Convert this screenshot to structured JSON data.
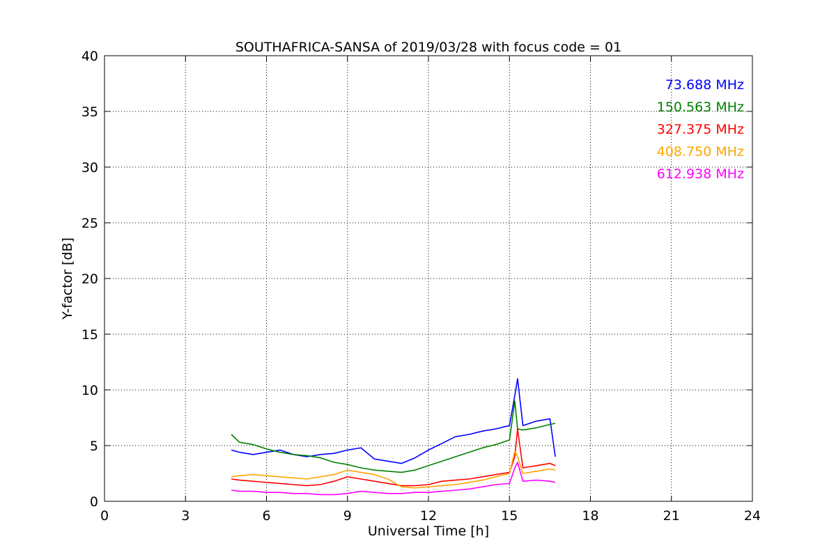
{
  "chart_data": {
    "type": "line",
    "title": "SOUTHAFRICA-SANSA of 2019/03/28 with focus code = 01",
    "xlabel": "Universal Time [h]",
    "ylabel": "Y-factor [dB]",
    "xlim": [
      0,
      24
    ],
    "ylim": [
      0,
      40
    ],
    "xticks": [
      "0",
      "3",
      "6",
      "9",
      "12",
      "15",
      "18",
      "21",
      "24"
    ],
    "yticks": [
      "0",
      "5",
      "10",
      "15",
      "20",
      "25",
      "30",
      "35",
      "40"
    ],
    "grid": true,
    "legend_position": "top-right",
    "series": [
      {
        "name": "73.688 MHz",
        "color": "#0000ff",
        "x": [
          4.7,
          5.0,
          5.5,
          6.0,
          6.5,
          7.0,
          7.5,
          8.0,
          8.5,
          9.0,
          9.5,
          10.0,
          10.5,
          11.0,
          11.5,
          12.0,
          12.5,
          13.0,
          13.5,
          14.0,
          14.5,
          15.0,
          15.2,
          15.3,
          15.5,
          16.0,
          16.5,
          16.7
        ],
        "y": [
          4.6,
          4.4,
          4.2,
          4.4,
          4.6,
          4.2,
          4.0,
          4.2,
          4.3,
          4.6,
          4.8,
          3.8,
          3.6,
          3.4,
          3.9,
          4.6,
          5.2,
          5.8,
          6.0,
          6.3,
          6.5,
          6.8,
          9.5,
          11.0,
          6.8,
          7.2,
          7.4,
          4.0
        ]
      },
      {
        "name": "150.563 MHz",
        "color": "#008000",
        "x": [
          4.7,
          5.0,
          5.5,
          6.0,
          6.5,
          7.0,
          7.5,
          8.0,
          8.5,
          9.0,
          9.5,
          10.0,
          10.5,
          11.0,
          11.5,
          12.0,
          12.5,
          13.0,
          13.5,
          14.0,
          14.5,
          15.0,
          15.2,
          15.3,
          15.5,
          16.0,
          16.5,
          16.7
        ],
        "y": [
          6.0,
          5.3,
          5.1,
          4.7,
          4.4,
          4.2,
          4.1,
          3.9,
          3.5,
          3.3,
          3.0,
          2.8,
          2.7,
          2.6,
          2.8,
          3.2,
          3.6,
          4.0,
          4.4,
          4.8,
          5.1,
          5.5,
          9.0,
          6.5,
          6.4,
          6.6,
          6.9,
          7.0
        ]
      },
      {
        "name": "327.375 MHz",
        "color": "#ff0000",
        "x": [
          4.7,
          5.0,
          5.5,
          6.0,
          6.5,
          7.0,
          7.5,
          8.0,
          8.5,
          9.0,
          9.5,
          10.0,
          10.5,
          11.0,
          11.5,
          12.0,
          12.5,
          13.0,
          13.5,
          14.0,
          14.5,
          15.0,
          15.2,
          15.3,
          15.5,
          16.0,
          16.5,
          16.7
        ],
        "y": [
          2.0,
          1.9,
          1.8,
          1.7,
          1.6,
          1.5,
          1.4,
          1.5,
          1.8,
          2.2,
          2.0,
          1.8,
          1.6,
          1.4,
          1.4,
          1.5,
          1.8,
          1.9,
          2.0,
          2.2,
          2.4,
          2.6,
          4.0,
          6.5,
          3.0,
          3.2,
          3.4,
          3.2
        ]
      },
      {
        "name": "408.750 MHz",
        "color": "#ffa500",
        "x": [
          4.7,
          5.0,
          5.5,
          6.0,
          6.5,
          7.0,
          7.5,
          8.0,
          8.5,
          9.0,
          9.5,
          10.0,
          10.5,
          11.0,
          11.5,
          12.0,
          12.5,
          13.0,
          13.5,
          14.0,
          14.5,
          15.0,
          15.2,
          15.3,
          15.5,
          16.0,
          16.5,
          16.7
        ],
        "y": [
          2.2,
          2.3,
          2.4,
          2.3,
          2.2,
          2.1,
          2.0,
          2.2,
          2.4,
          2.8,
          2.6,
          2.4,
          2.0,
          1.3,
          1.2,
          1.3,
          1.4,
          1.5,
          1.7,
          1.9,
          2.2,
          2.5,
          4.5,
          4.0,
          2.5,
          2.7,
          2.9,
          2.8
        ]
      },
      {
        "name": "612.938 MHz",
        "color": "#ff00ff",
        "x": [
          4.7,
          5.0,
          5.5,
          6.0,
          6.5,
          7.0,
          7.5,
          8.0,
          8.5,
          9.0,
          9.5,
          10.0,
          10.5,
          11.0,
          11.5,
          12.0,
          12.5,
          13.0,
          13.5,
          14.0,
          14.5,
          15.0,
          15.2,
          15.3,
          15.5,
          16.0,
          16.5,
          16.7
        ],
        "y": [
          1.0,
          0.9,
          0.9,
          0.8,
          0.8,
          0.7,
          0.7,
          0.6,
          0.6,
          0.7,
          0.9,
          0.8,
          0.7,
          0.7,
          0.8,
          0.8,
          0.9,
          1.0,
          1.1,
          1.3,
          1.5,
          1.6,
          3.0,
          3.5,
          1.8,
          1.9,
          1.8,
          1.7
        ]
      }
    ]
  }
}
